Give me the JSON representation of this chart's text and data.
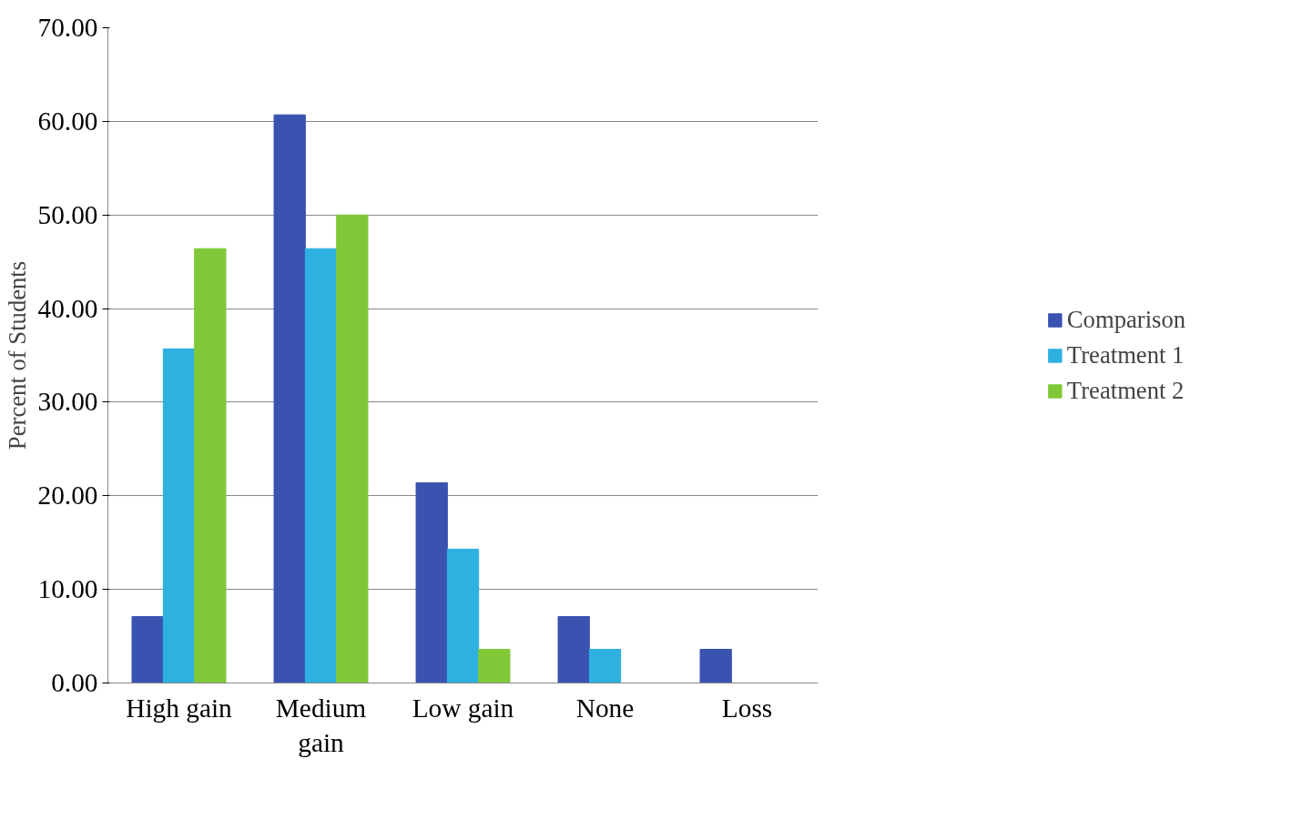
{
  "chart_data": {
    "type": "bar",
    "ylabel": "Percent of Students",
    "categories": [
      "High gain",
      "Medium gain",
      "Low gain",
      "None",
      "Loss"
    ],
    "series": [
      {
        "name": "Comparison",
        "color": "#3a52b0",
        "values": [
          7.1,
          60.7,
          21.4,
          7.1,
          3.6
        ]
      },
      {
        "name": "Treatment 1",
        "color": "#2eb0e0",
        "values": [
          35.7,
          46.4,
          14.3,
          3.6,
          0
        ]
      },
      {
        "name": "Treatment 2",
        "color": "#80c838",
        "values": [
          46.4,
          50.0,
          3.6,
          0,
          0
        ]
      }
    ],
    "ylim": [
      0,
      70
    ],
    "yticks": [
      {
        "value": 0,
        "label": "0.00"
      },
      {
        "value": 10,
        "label": "10.00"
      },
      {
        "value": 20,
        "label": "20.00"
      },
      {
        "value": 30,
        "label": "30.00"
      },
      {
        "value": 40,
        "label": "40.00"
      },
      {
        "value": 50,
        "label": "50.00"
      },
      {
        "value": 60,
        "label": "60.00"
      },
      {
        "value": 70,
        "label": "70.00"
      }
    ],
    "grid": "y",
    "legend": "right"
  }
}
